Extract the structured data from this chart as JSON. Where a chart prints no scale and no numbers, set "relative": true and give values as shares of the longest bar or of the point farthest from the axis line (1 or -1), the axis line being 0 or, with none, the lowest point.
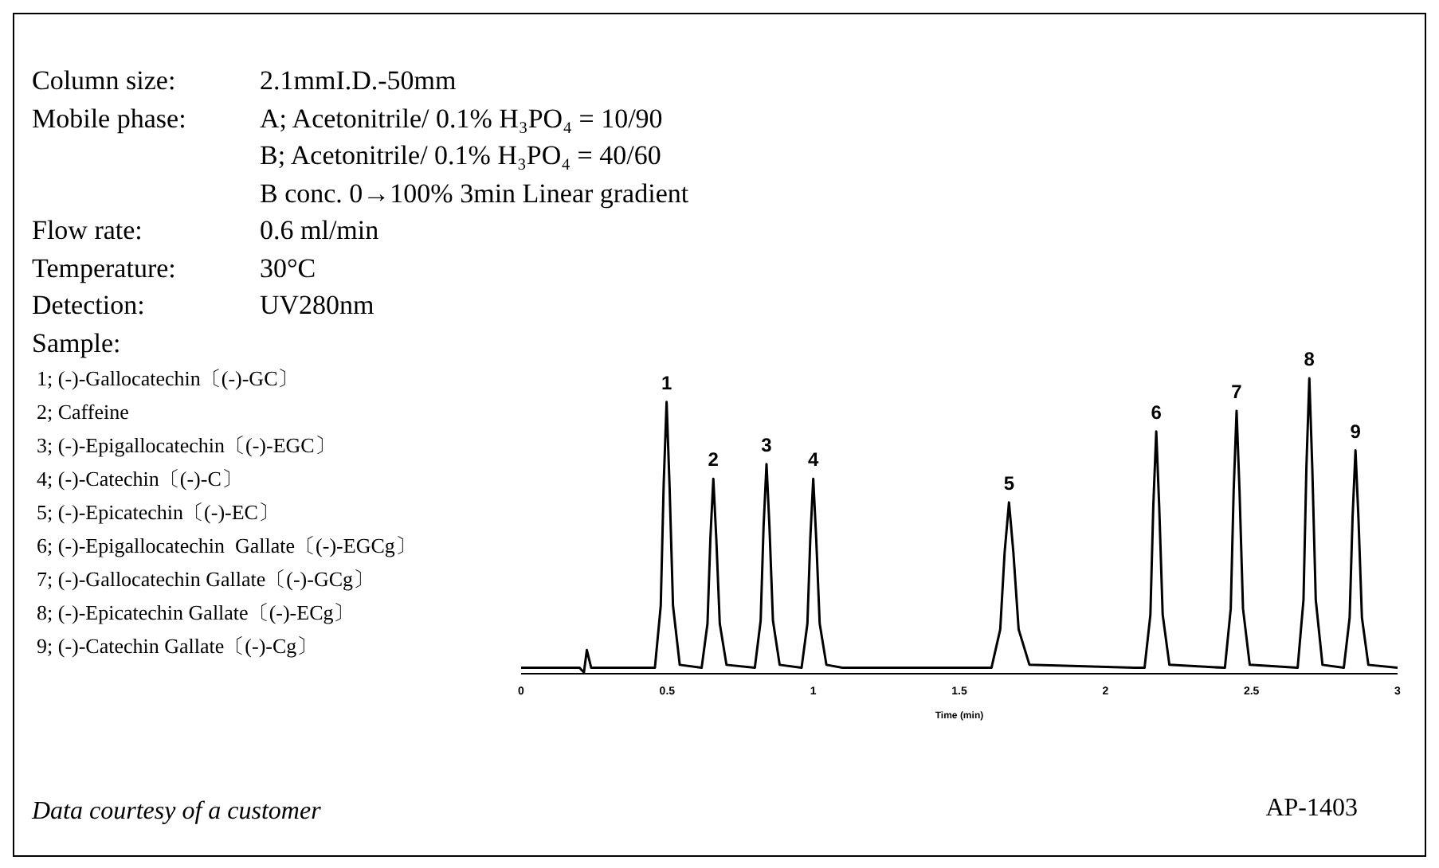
{
  "chart_data": {
    "type": "line",
    "relative": true,
    "xlabel": "Time (min)",
    "xlim": [
      0,
      3
    ],
    "xticks": [
      0,
      0.5,
      1,
      1.5,
      2,
      2.5,
      3
    ],
    "marker": "none",
    "line_style": "solid",
    "grid": false,
    "legend": false,
    "x": [
      0,
      0.2,
      0.215,
      0.225,
      0.24,
      0.45,
      0.458,
      0.478,
      0.488,
      0.498,
      0.508,
      0.52,
      0.543,
      0.618,
      0.638,
      0.648,
      0.658,
      0.668,
      0.68,
      0.703,
      0.8,
      0.82,
      0.83,
      0.84,
      0.85,
      0.862,
      0.885,
      0.96,
      0.98,
      0.99,
      1.0,
      1.01,
      1.022,
      1.045,
      1.1,
      1.61,
      1.64,
      1.655,
      1.67,
      1.685,
      1.703,
      1.74,
      2.1,
      2.134,
      2.154,
      2.164,
      2.174,
      2.184,
      2.196,
      2.219,
      2.409,
      2.429,
      2.439,
      2.449,
      2.459,
      2.471,
      2.494,
      2.658,
      2.678,
      2.688,
      2.698,
      2.708,
      2.72,
      2.743,
      2.816,
      2.836,
      2.846,
      2.856,
      2.866,
      2.878,
      2.9,
      3
    ],
    "series": [
      {
        "color": "#000000",
        "values": [
          0.02,
          0.02,
          0.004,
          0.08,
          0.02,
          0.02,
          0.02,
          0.23,
          0.64,
          0.92,
          0.64,
          0.23,
          0.03,
          0.02,
          0.17,
          0.46,
          0.66,
          0.46,
          0.17,
          0.03,
          0.02,
          0.18,
          0.5,
          0.71,
          0.5,
          0.18,
          0.03,
          0.02,
          0.17,
          0.46,
          0.66,
          0.46,
          0.17,
          0.03,
          0.02,
          0.02,
          0.15,
          0.41,
          0.58,
          0.41,
          0.15,
          0.03,
          0.02,
          0.02,
          0.2,
          0.57,
          0.82,
          0.57,
          0.2,
          0.03,
          0.02,
          0.22,
          0.62,
          0.89,
          0.62,
          0.22,
          0.03,
          0.02,
          0.25,
          0.7,
          1,
          0.7,
          0.25,
          0.03,
          0.02,
          0.19,
          0.53,
          0.756,
          0.53,
          0.19,
          0.03,
          0.02
        ]
      }
    ],
    "annotations": [
      "Column size:\t2.1mmI.D.-50mm",
      "Mobile phase:\tA; Acetonitrile/ 0.1% H₃PO₄ = 10/90",
      "\tB; Acetonitrile/ 0.1% H₃PO₄ = 40/60",
      "\tB conc. 0→100% 3min Linear gradient",
      "Flow rate:\t0.6 ml/min",
      "Temperature:\t30°C",
      "Detection:\tUV280nm",
      "Sample:",
      "1; (-)-Gallocatechin〔(-)-GC〕",
      "2; Caffeine",
      "3; (-)-Epigallocatechin〔(-)-EGC〕",
      "4; (-)-Catechin〔(-)-C〕",
      "5; (-)-Epicatechin〔(-)-EC〕",
      "6; (-)-Epigallocatechin  Gallate〔(-)-EGCg〕",
      "7; (-)-Gallocatechin Gallate〔(-)-GCg〕",
      "8; (-)-Epicatechin Gallate〔(-)-ECg〕",
      "9; (-)-Catechin Gallate〔(-)-Cg〕",
      "Data courtesy of a customer",
      "AP-1403",
      {
        "text": "1",
        "x": 0.498,
        "y": 0.92
      },
      {
        "text": "2",
        "x": 0.658,
        "y": 0.66
      },
      {
        "text": "3",
        "x": 0.84,
        "y": 0.71
      },
      {
        "text": "4",
        "x": 1.0,
        "y": 0.66
      },
      {
        "text": "5",
        "x": 1.67,
        "y": 0.58
      },
      {
        "text": "6",
        "x": 2.174,
        "y": 0.82
      },
      {
        "text": "7",
        "x": 2.449,
        "y": 0.89
      },
      {
        "text": "8",
        "x": 2.698,
        "y": 1
      },
      {
        "text": "9",
        "x": 2.856,
        "y": 0.756
      }
    ]
  }
}
